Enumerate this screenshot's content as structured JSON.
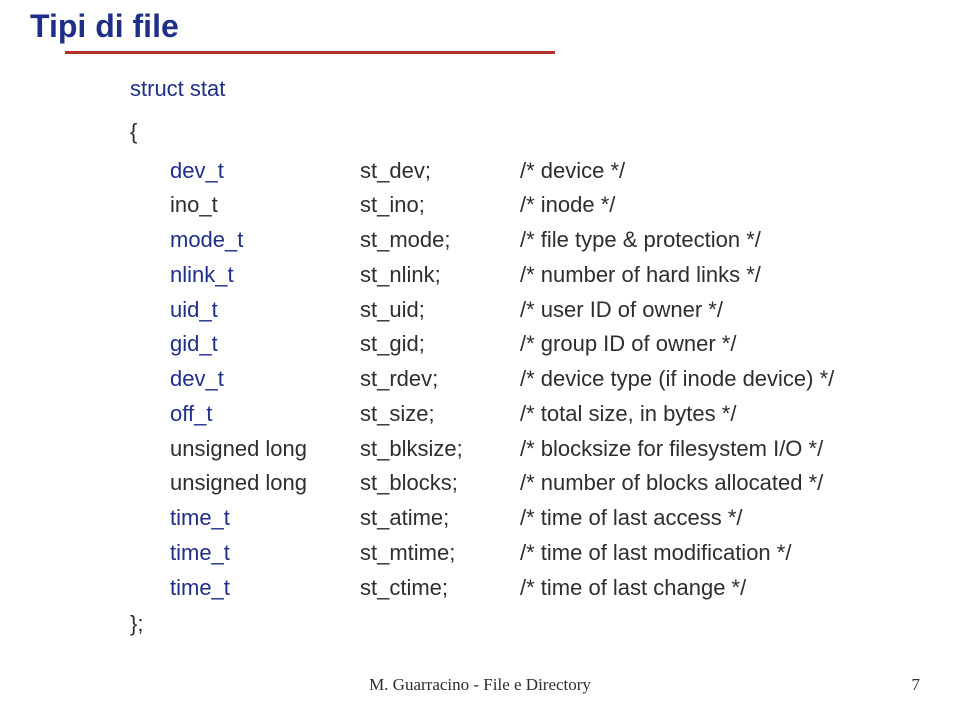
{
  "title": "Tipi di file",
  "struct": {
    "keyword": "struct stat",
    "open": "{",
    "close": "};",
    "members": [
      {
        "type": "dev_t",
        "decl": true,
        "field": "st_dev;",
        "comment": "/* device */"
      },
      {
        "type": "ino_t",
        "decl": false,
        "field": "st_ino;",
        "comment": "/* inode */"
      },
      {
        "type": "mode_t",
        "decl": true,
        "field": "st_mode;",
        "comment": "/* file type & protection */"
      },
      {
        "type": "nlink_t",
        "decl": true,
        "field": "st_nlink;",
        "comment": "/* number of hard links */"
      },
      {
        "type": "uid_t",
        "decl": true,
        "field": "st_uid;",
        "comment": "/* user ID of owner */"
      },
      {
        "type": "gid_t",
        "decl": true,
        "field": "st_gid;",
        "comment": "/* group ID of owner */"
      },
      {
        "type": "dev_t",
        "decl": true,
        "field": "st_rdev;",
        "comment": "/* device type (if inode device) */"
      },
      {
        "type": "off_t",
        "decl": true,
        "field": "st_size;",
        "comment": "/* total size, in bytes */"
      },
      {
        "type": "unsigned long",
        "decl": false,
        "field": "st_blksize;",
        "comment": "/* blocksize for filesystem I/O */"
      },
      {
        "type": "unsigned long",
        "decl": false,
        "field": "st_blocks;",
        "comment": "/* number of blocks allocated */"
      },
      {
        "type": "time_t",
        "decl": true,
        "field": "st_atime;",
        "comment": "/* time of last access */"
      },
      {
        "type": "time_t",
        "decl": true,
        "field": "st_mtime;",
        "comment": "/* time of last modification */"
      },
      {
        "type": "time_t",
        "decl": true,
        "field": "st_ctime;",
        "comment": "/* time of last change */"
      }
    ]
  },
  "footer": "M. Guarracino - File e Directory",
  "page_number": "7"
}
